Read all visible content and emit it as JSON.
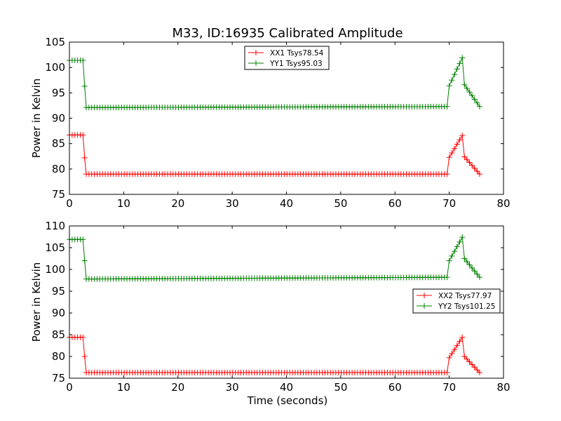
{
  "figure": {
    "title": "M33, ID:16935 Calibrated Amplitude",
    "xlabel": "Time (seconds)"
  },
  "chart_data": [
    {
      "type": "line",
      "title": "M33, ID:16935 Calibrated Amplitude",
      "xlabel": "",
      "ylabel": "Power in Kelvin",
      "xlim": [
        0,
        80
      ],
      "ylim": [
        75,
        105
      ],
      "xticks": [
        "0",
        "10",
        "20",
        "30",
        "40",
        "50",
        "60",
        "70",
        "80"
      ],
      "yticks": [
        "75",
        "80",
        "85",
        "90",
        "95",
        "100",
        "105"
      ],
      "grid": false,
      "legend": "top-center",
      "series": [
        {
          "name": "XX1 Tsys78.54",
          "color": "#ff0000",
          "marker": "+",
          "x": [
            0,
            2.5,
            2.8,
            3.1,
            69.6,
            70.0,
            72.4,
            72.8,
            75.6
          ],
          "y": [
            86.7,
            86.7,
            82.2,
            79.0,
            79.0,
            82.3,
            86.6,
            82.4,
            79.0
          ]
        },
        {
          "name": "YY1 Tsys95.03",
          "color": "#008000",
          "marker": "+",
          "x": [
            0,
            2.5,
            2.8,
            3.1,
            69.6,
            70.0,
            72.4,
            72.8,
            75.6
          ],
          "y": [
            101.4,
            101.4,
            96.3,
            92.1,
            92.3,
            96.4,
            101.9,
            96.6,
            92.3
          ]
        }
      ]
    },
    {
      "type": "line",
      "xlabel": "Time (seconds)",
      "ylabel": "Power in Kelvin",
      "xlim": [
        0,
        80
      ],
      "ylim": [
        75,
        110
      ],
      "xticks": [
        "0",
        "10",
        "20",
        "30",
        "40",
        "50",
        "60",
        "70",
        "80"
      ],
      "yticks": [
        "75",
        "80",
        "85",
        "90",
        "95",
        "100",
        "105",
        "110"
      ],
      "grid": false,
      "legend": "center-right",
      "series": [
        {
          "name": "XX2 Tsys77.97",
          "color": "#ff0000",
          "marker": "+",
          "x": [
            0,
            2.5,
            2.8,
            3.1,
            69.6,
            70.0,
            72.4,
            72.8,
            75.6
          ],
          "y": [
            84.4,
            84.4,
            80.0,
            76.3,
            76.3,
            79.7,
            84.4,
            80.0,
            76.3
          ]
        },
        {
          "name": "YY2 Tsys101.25",
          "color": "#008000",
          "marker": "+",
          "x": [
            0,
            2.5,
            2.8,
            3.1,
            69.6,
            70.0,
            72.4,
            72.8,
            75.6
          ],
          "y": [
            106.9,
            106.9,
            102.0,
            97.8,
            98.2,
            102.0,
            107.4,
            102.5,
            98.2
          ]
        }
      ]
    }
  ]
}
